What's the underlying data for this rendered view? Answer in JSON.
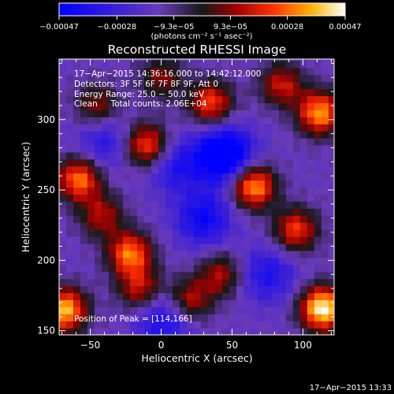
{
  "chart_data": {
    "type": "heatmap",
    "title": "Reconstructed RHESSI Image",
    "xlabel": "Heliocentric X (arcsec)",
    "ylabel": "Heliocentric Y (arcsec)",
    "xlim": [
      -72,
      122
    ],
    "ylim": [
      147,
      343
    ],
    "xticks": [
      -50,
      0,
      50,
      100
    ],
    "xtick_labels": [
      "−50",
      "0",
      "50",
      "100"
    ],
    "yticks": [
      150,
      200,
      250,
      300
    ],
    "ytick_labels": [
      "150",
      "200",
      "250",
      "300"
    ],
    "colorbar": {
      "vmin": -0.00047,
      "vmax": 0.00047,
      "tick_values": [
        -0.00047,
        -0.00028,
        -9.3e-05,
        9.3e-05,
        0.00028,
        0.00047
      ],
      "tick_labels": [
        "−0.00047",
        "−0.00028",
        "−9.3e−05",
        "9.3e−05",
        "0.00028",
        "0.00047"
      ],
      "label": "(photons cm⁻² s⁻¹ asec⁻²)"
    },
    "annotations": [
      "17−Apr−2015 14:36:16.000 to 14:42:12.000",
      "Detectors: 3F 5F 6F 7F 8F 9F, Att 0",
      "Energy Range: 25.0 − 50.0 keV",
      "Clean     Total counts: 2.06E+04"
    ],
    "peak_label": "Position of Peak = [114,166]",
    "peak": [
      114,
      166
    ],
    "sources": [
      {
        "x": 114,
        "y": 166,
        "amp": 1.0
      },
      {
        "x": -68,
        "y": 165,
        "amp": 0.85
      },
      {
        "x": -58,
        "y": 258,
        "amp": 0.72
      },
      {
        "x": 65,
        "y": 253,
        "amp": 0.82
      },
      {
        "x": 112,
        "y": 305,
        "amp": 0.78
      },
      {
        "x": -10,
        "y": 282,
        "amp": 0.68
      },
      {
        "x": -22,
        "y": 205,
        "amp": 0.72
      },
      {
        "x": 35,
        "y": 312,
        "amp": 0.62
      },
      {
        "x": 95,
        "y": 222,
        "amp": 0.6
      },
      {
        "x": 20,
        "y": 172,
        "amp": 0.5
      },
      {
        "x": 42,
        "y": 190,
        "amp": 0.45
      },
      {
        "x": -42,
        "y": 232,
        "amp": 0.45
      },
      {
        "x": 85,
        "y": 325,
        "amp": 0.5
      },
      {
        "x": -45,
        "y": 310,
        "amp": 0.42
      },
      {
        "x": 0,
        "y": 330,
        "amp": 0.38
      },
      {
        "x": -15,
        "y": 180,
        "amp": 0.5
      }
    ],
    "negatives": [
      {
        "x": 45,
        "y": 275,
        "amp": 0.75
      },
      {
        "x": 10,
        "y": 268,
        "amp": 0.35
      },
      {
        "x": -40,
        "y": 285,
        "amp": 0.3
      },
      {
        "x": 2,
        "y": 158,
        "amp": 0.4
      },
      {
        "x": 30,
        "y": 230,
        "amp": 0.45
      },
      {
        "x": 75,
        "y": 190,
        "amp": 0.35
      }
    ]
  },
  "timestamp": "17−Apr−2015 13:33"
}
